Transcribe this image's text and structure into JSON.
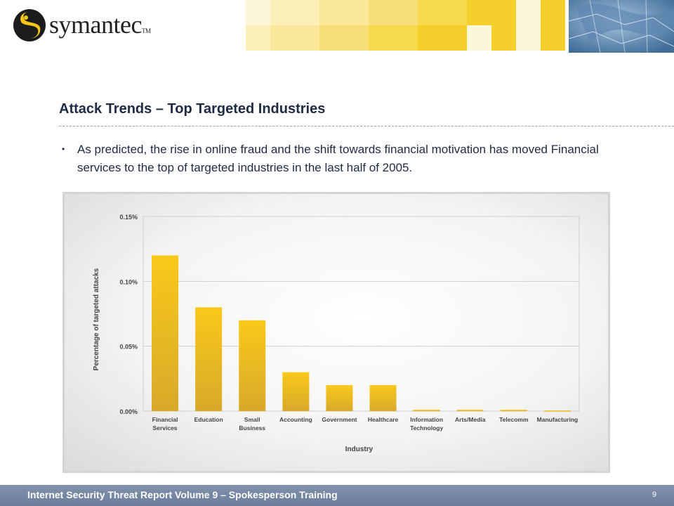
{
  "header": {
    "logo_text": "symantec",
    "logo_tm": "TM"
  },
  "slide": {
    "title": "Attack Trends – Top Targeted Industries",
    "bullet": "As predicted, the rise in online fraud and the shift towards financial motivation has moved Financial services to the top of targeted industries in the last half of 2005."
  },
  "colors": {
    "bar_top": "#f9c91a",
    "bar_bottom": "#d8a92a",
    "title_text": "#1f2a44",
    "footer_bg": "#7788a4",
    "accent_yellow": "#f7d94c"
  },
  "chart_data": {
    "type": "bar",
    "categories": [
      [
        "Financial",
        "Services"
      ],
      [
        "Education"
      ],
      [
        "Small",
        "Business"
      ],
      [
        "Accounting"
      ],
      [
        "Government"
      ],
      [
        "Healthcare"
      ],
      [
        "Information",
        "Technology"
      ],
      [
        "Arts/Media"
      ],
      [
        "Telecomm"
      ],
      [
        "Manufacturing"
      ]
    ],
    "values": [
      0.12,
      0.08,
      0.07,
      0.03,
      0.02,
      0.02,
      0.001,
      0.001,
      0.001,
      0.0005
    ],
    "ylim": [
      0,
      0.15
    ],
    "yticks": [
      {
        "value": 0,
        "label": "0.00%"
      },
      {
        "value": 0.05,
        "label": "0.05%"
      },
      {
        "value": 0.1,
        "label": "0.10%"
      },
      {
        "value": 0.15,
        "label": "0.15%"
      }
    ],
    "xlabel": "Industry",
    "ylabel": "Percentage of targeted attacks",
    "grid": true,
    "legend": "none"
  },
  "footer": {
    "text": "Internet Security Threat Report Volume 9 – Spokesperson Training",
    "page_number": "9"
  }
}
